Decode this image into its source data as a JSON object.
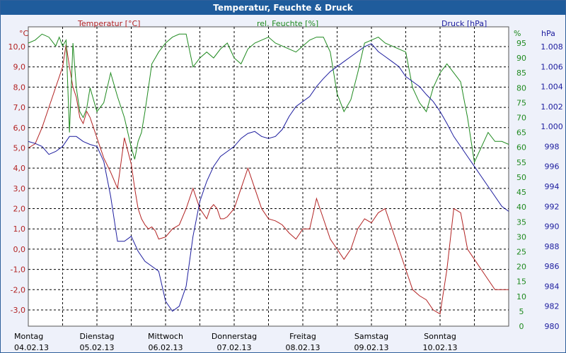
{
  "window": {
    "title": "Temperatur, Feuchte & Druck"
  },
  "chart_data": {
    "type": "line",
    "title": "Temperatur, Feuchte & Druck",
    "colors": {
      "temperature": "#b22222",
      "humidity": "#1f8a1f",
      "pressure": "#1c1c9e",
      "grid": "#000000",
      "plot_bg": "#ffffff",
      "titlebar": "#1f5c9c"
    },
    "grid": true,
    "axes": {
      "temperature": {
        "unit_label": "°C",
        "header": "Temperatur [°C]",
        "min": -3.0,
        "max": 10.0,
        "ticks": [
          "10,0",
          "9,0",
          "8,0",
          "7,0",
          "6,0",
          "5,0",
          "4,0",
          "3,0",
          "2,0",
          "1,0",
          "0,0",
          "-1,0",
          "-2,0",
          "-3,0"
        ],
        "tick_values": [
          10,
          9,
          8,
          7,
          6,
          5,
          4,
          3,
          2,
          1,
          0,
          -1,
          -2,
          -3
        ]
      },
      "humidity": {
        "unit_label": "%",
        "header": "rel. Feuchte [%]",
        "min": 0,
        "max": 95,
        "ticks": [
          "95",
          "90",
          "85",
          "80",
          "75",
          "70",
          "65",
          "60",
          "55",
          "50",
          "45",
          "40",
          "35",
          "30",
          "25",
          "20",
          "15",
          "10",
          "5",
          "0"
        ],
        "tick_values": [
          95,
          90,
          85,
          80,
          75,
          70,
          65,
          60,
          55,
          50,
          45,
          40,
          35,
          30,
          25,
          20,
          15,
          10,
          5,
          0
        ]
      },
      "pressure": {
        "unit_label": "hPa",
        "header": "Druck [hPa]",
        "min": 980,
        "max": 1008,
        "ticks": [
          "1.008",
          "1.006",
          "1.004",
          "1.002",
          "1.000",
          "998",
          "996",
          "994",
          "992",
          "990",
          "988",
          "986",
          "984",
          "982",
          "980"
        ],
        "tick_values": [
          1008,
          1006,
          1004,
          1002,
          1000,
          998,
          996,
          994,
          992,
          990,
          988,
          986,
          984,
          982,
          980
        ]
      }
    },
    "x_axis": {
      "min_day": 0,
      "max_day": 7,
      "days": [
        {
          "weekday": "Montag",
          "date": "04.02.13"
        },
        {
          "weekday": "Dienstag",
          "date": "05.02.13"
        },
        {
          "weekday": "Mittwoch",
          "date": "06.02.13"
        },
        {
          "weekday": "Donnerstag",
          "date": "07.02.13"
        },
        {
          "weekday": "Freitag",
          "date": "08.02.13"
        },
        {
          "weekday": "Samstag",
          "date": "09.02.13"
        },
        {
          "weekday": "Sonntag",
          "date": "10.02.13"
        }
      ]
    },
    "series": [
      {
        "name": "Temperatur [°C]",
        "key": "temperature",
        "axis": "temperature",
        "x": [
          0,
          0.1,
          0.2,
          0.3,
          0.4,
          0.45,
          0.5,
          0.55,
          0.6,
          0.65,
          0.7,
          0.75,
          0.8,
          0.85,
          0.9,
          1.0,
          1.1,
          1.2,
          1.3,
          1.4,
          1.5,
          1.55,
          1.6,
          1.65,
          1.7,
          1.75,
          1.8,
          1.85,
          1.9,
          2.0,
          2.1,
          2.2,
          2.3,
          2.4,
          2.5,
          2.6,
          2.65,
          2.7,
          2.75,
          2.8,
          2.85,
          2.9,
          3.0,
          3.1,
          3.2,
          3.3,
          3.4,
          3.5,
          3.6,
          3.65,
          3.7,
          3.8,
          3.9,
          4.0,
          4.1,
          4.2,
          4.3,
          4.4,
          4.5,
          4.6,
          4.7,
          4.8,
          4.9,
          5.0,
          5.1,
          5.2,
          5.3,
          5.4,
          5.5,
          5.55,
          5.6,
          5.7,
          5.8,
          5.9,
          6.0,
          6.1,
          6.2,
          6.3,
          6.4,
          6.5,
          6.6,
          6.7,
          6.8,
          6.9,
          7.0
        ],
        "values": [
          5.0,
          5.2,
          6.0,
          7.0,
          8.0,
          8.5,
          9.0,
          10.1,
          9.0,
          8.0,
          7.5,
          6.5,
          6.2,
          6.8,
          6.5,
          5.5,
          4.5,
          3.8,
          3.0,
          5.5,
          4.2,
          3.0,
          2.0,
          1.5,
          1.2,
          1.0,
          1.1,
          0.9,
          0.5,
          0.6,
          1.0,
          1.2,
          2.0,
          3.0,
          2.0,
          1.5,
          2.0,
          2.2,
          2.0,
          1.5,
          1.5,
          1.6,
          2.0,
          3.0,
          4.0,
          3.0,
          2.0,
          1.5,
          1.4,
          1.3,
          1.2,
          0.8,
          0.5,
          1.0,
          1.0,
          2.5,
          1.5,
          0.5,
          0.0,
          -0.5,
          0.0,
          1.0,
          1.5,
          1.3,
          1.8,
          2.0,
          1.0,
          0.0,
          -1.0,
          -1.5,
          -2.0,
          -2.3,
          -2.5,
          -3.0,
          -3.2,
          -1.0,
          2.0,
          1.8,
          0.0,
          -0.5,
          -1.0,
          -1.5,
          -2.0,
          -2.0,
          -2.0
        ]
      },
      {
        "name": "rel. Feuchte [%]",
        "key": "humidity",
        "axis": "humidity",
        "x": [
          0,
          0.1,
          0.2,
          0.3,
          0.4,
          0.45,
          0.5,
          0.55,
          0.6,
          0.65,
          0.7,
          0.75,
          0.8,
          0.85,
          0.9,
          1.0,
          1.1,
          1.2,
          1.3,
          1.4,
          1.5,
          1.55,
          1.6,
          1.65,
          1.7,
          1.75,
          1.8,
          1.85,
          1.9,
          2.0,
          2.1,
          2.2,
          2.3,
          2.4,
          2.5,
          2.6,
          2.7,
          2.8,
          2.9,
          3.0,
          3.1,
          3.2,
          3.3,
          3.4,
          3.5,
          3.6,
          3.7,
          3.8,
          3.9,
          4.0,
          4.1,
          4.2,
          4.3,
          4.4,
          4.5,
          4.6,
          4.7,
          4.8,
          4.9,
          5.0,
          5.1,
          5.2,
          5.3,
          5.4,
          5.5,
          5.6,
          5.7,
          5.8,
          5.9,
          6.0,
          6.1,
          6.2,
          6.3,
          6.4,
          6.5,
          6.6,
          6.7,
          6.8,
          6.9,
          7.0
        ],
        "values": [
          95,
          96,
          98,
          97,
          94,
          97,
          94,
          96,
          65,
          95,
          80,
          72,
          70,
          73,
          80,
          72,
          75,
          85,
          77,
          70,
          60,
          56,
          62,
          65,
          72,
          80,
          88,
          90,
          92,
          95,
          97,
          98,
          98,
          87,
          90,
          92,
          90,
          93,
          95,
          90,
          88,
          93,
          95,
          96,
          97,
          95,
          94,
          93,
          92,
          94,
          96,
          97,
          97,
          92,
          78,
          72,
          76,
          85,
          95,
          96,
          97,
          95,
          94,
          93,
          92,
          80,
          75,
          72,
          80,
          85,
          88,
          85,
          82,
          70,
          55,
          60,
          65,
          62,
          62,
          61
        ]
      },
      {
        "name": "Druck [hPa]",
        "key": "pressure",
        "axis": "pressure",
        "x": [
          0,
          0.1,
          0.2,
          0.3,
          0.4,
          0.5,
          0.6,
          0.7,
          0.8,
          0.9,
          1.0,
          1.1,
          1.2,
          1.3,
          1.4,
          1.5,
          1.6,
          1.7,
          1.8,
          1.9,
          2.0,
          2.1,
          2.2,
          2.3,
          2.4,
          2.5,
          2.6,
          2.7,
          2.8,
          2.9,
          3.0,
          3.1,
          3.2,
          3.3,
          3.4,
          3.5,
          3.6,
          3.7,
          3.8,
          3.9,
          4.0,
          4.1,
          4.2,
          4.3,
          4.4,
          4.5,
          4.6,
          4.7,
          4.8,
          4.9,
          5.0,
          5.1,
          5.2,
          5.3,
          5.4,
          5.5,
          5.6,
          5.7,
          5.8,
          5.9,
          6.0,
          6.1,
          6.2,
          6.3,
          6.4,
          6.5,
          6.6,
          6.7,
          6.8,
          6.9,
          7.0
        ],
        "values": [
          998.5,
          998.3,
          998.0,
          997.2,
          997.5,
          998.0,
          999.0,
          999.0,
          998.5,
          998.2,
          998.0,
          996.5,
          993.0,
          988.5,
          988.5,
          989.0,
          987.5,
          986.5,
          986.0,
          985.5,
          982.5,
          981.5,
          982.0,
          984.0,
          989.0,
          992.5,
          994.5,
          996.0,
          997.0,
          997.5,
          998.0,
          998.8,
          999.3,
          999.5,
          999.0,
          998.8,
          999.0,
          999.7,
          1001.0,
          1002.0,
          1002.5,
          1003.0,
          1004.0,
          1004.8,
          1005.5,
          1006.0,
          1006.5,
          1007.0,
          1007.5,
          1008.0,
          1008.3,
          1007.5,
          1007.0,
          1006.5,
          1006.0,
          1005.0,
          1004.5,
          1004.0,
          1003.2,
          1002.5,
          1001.5,
          1000.3,
          999.0,
          998.0,
          997.0,
          996.0,
          995.0,
          994.0,
          993.0,
          992.0,
          991.5
        ]
      }
    ]
  }
}
